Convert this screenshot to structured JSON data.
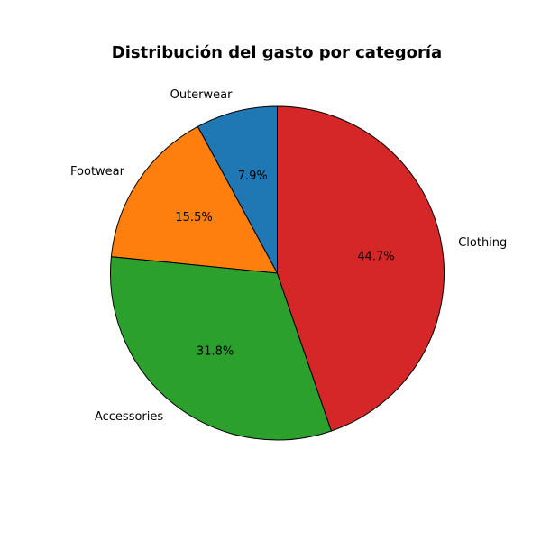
{
  "chart_data": {
    "type": "pie",
    "title": "Distribución del gasto por categoría",
    "start_angle_deg": 90,
    "direction": "counterclockwise",
    "slices": [
      {
        "label": "Outerwear",
        "value": 7.9,
        "pct_label": "7.9%",
        "color": "#1f77b4"
      },
      {
        "label": "Footwear",
        "value": 15.5,
        "pct_label": "15.5%",
        "color": "#ff7f0e"
      },
      {
        "label": "Accessories",
        "value": 31.8,
        "pct_label": "31.8%",
        "color": "#2ca02c"
      },
      {
        "label": "Clothing",
        "value": 44.7,
        "pct_label": "44.7%",
        "color": "#d62728"
      }
    ],
    "edge_color": "#000000",
    "legend": "none"
  }
}
